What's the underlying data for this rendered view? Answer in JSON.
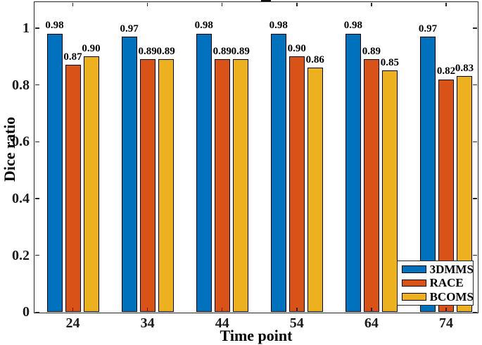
{
  "figure": {
    "background": "#ffffff",
    "axis_color": "#262626",
    "text_color": "#000000"
  },
  "chart_data": {
    "type": "bar",
    "categories": [
      "24",
      "34",
      "44",
      "54",
      "64",
      "74"
    ],
    "series": [
      {
        "name": "3DMMS",
        "color": "#0072BD",
        "values": [
          0.98,
          0.97,
          0.98,
          0.98,
          0.98,
          0.97
        ],
        "labels": [
          "0.98",
          "0.97",
          "0.98",
          "0.98",
          "0.98",
          "0.97"
        ]
      },
      {
        "name": "RACE",
        "color": "#D95319",
        "values": [
          0.87,
          0.89,
          0.89,
          0.9,
          0.89,
          0.82
        ],
        "labels": [
          "0.87",
          "0.89",
          "0.89",
          "0.90",
          "0.89",
          "0.82"
        ]
      },
      {
        "name": "BCOMS",
        "color": "#EDB120",
        "values": [
          0.9,
          0.89,
          0.89,
          0.86,
          0.85,
          0.83
        ],
        "labels": [
          "0.90",
          "0.89",
          "0.89",
          "0.86",
          "0.85",
          "0.83"
        ]
      }
    ],
    "xlabel": "Time point",
    "ylabel": "Dice ratio",
    "yticks": [
      {
        "value": 0,
        "label": "0"
      },
      {
        "value": 0.2,
        "label": "0.2"
      },
      {
        "value": 0.4,
        "label": "0.4"
      },
      {
        "value": 0.6,
        "label": "0.6"
      },
      {
        "value": 0.8,
        "label": "0.8"
      },
      {
        "value": 1,
        "label": "1"
      }
    ],
    "ylim": [
      0,
      1.1
    ],
    "grid": false,
    "legend": {
      "position": "southeast",
      "entries": [
        "3DMMS",
        "RACE",
        "BCOMS"
      ]
    }
  }
}
